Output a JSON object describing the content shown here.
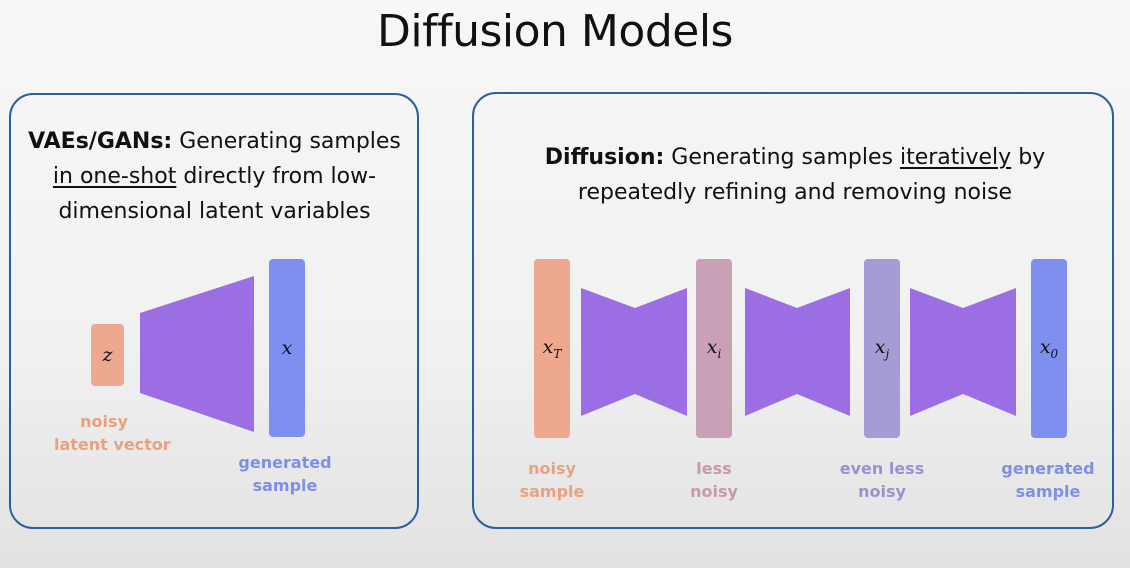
{
  "title": "Diffusion Models",
  "left_panel": {
    "heading": "VAEs/GANs:",
    "line1_rest": " Generating samples",
    "emphasis": "in one-shot",
    "line2_rest": " directly from low-",
    "line3": "dimensional latent variables",
    "z_symbol": "z",
    "x_symbol": "x",
    "z_label_line1": "noisy",
    "z_label_line2": "latent vector",
    "x_label_line1": "generated",
    "x_label_line2": "sample"
  },
  "right_panel": {
    "heading": "Diffusion:",
    "line1_rest": " Generating samples ",
    "emphasis": "iteratively",
    "line1_end": " by",
    "line2": "repeatedly refining and removing noise",
    "nodes": [
      {
        "symbol": "x",
        "sub": "T",
        "label_line1": "noisy",
        "label_line2": "sample"
      },
      {
        "symbol": "x",
        "sub": "i",
        "label_line1": "less",
        "label_line2": "noisy"
      },
      {
        "symbol": "x",
        "sub": "j",
        "label_line1": "even less",
        "label_line2": "noisy"
      },
      {
        "symbol": "x",
        "sub": "0",
        "label_line1": "generated",
        "label_line2": "sample"
      }
    ]
  },
  "colors": {
    "panel_border": "#2f5e9c",
    "noisy": "#eea890",
    "less_noisy": "#c9a0b5",
    "even_less_noisy": "#a79bd6",
    "generated": "#7f8ff0",
    "network": "#9b6fe3",
    "text_orange": "#e8a27f",
    "text_mauve": "#c79aab",
    "text_lilac": "#9d90cf",
    "text_blue": "#7f8fe6"
  }
}
